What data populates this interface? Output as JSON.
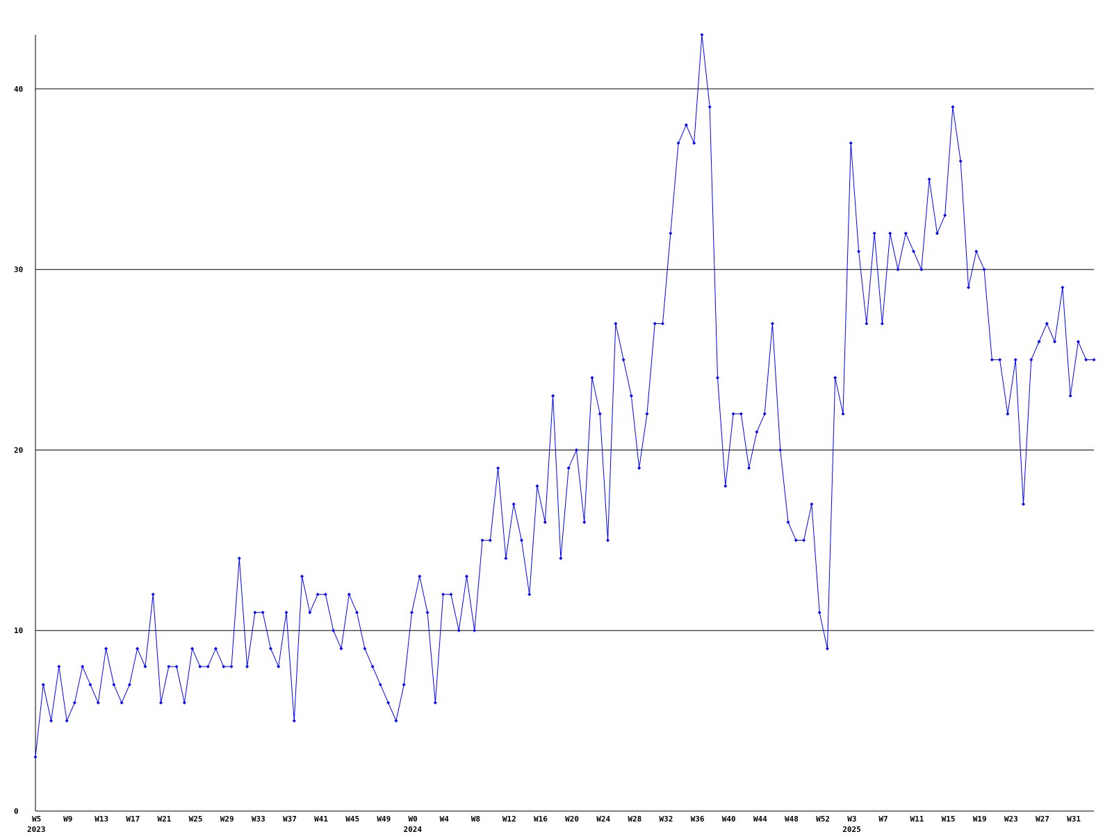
{
  "chart_data": {
    "type": "line",
    "categories": [
      "W5",
      null,
      null,
      null,
      "W9",
      null,
      null,
      null,
      "W13",
      null,
      null,
      null,
      "W17",
      null,
      null,
      null,
      "W21",
      null,
      null,
      null,
      "W25",
      null,
      null,
      null,
      "W29",
      null,
      null,
      null,
      "W33",
      null,
      null,
      null,
      "W37",
      null,
      null,
      null,
      "W41",
      null,
      null,
      null,
      "W45",
      null,
      null,
      null,
      "W49",
      null,
      null,
      null,
      "W0",
      null,
      null,
      null,
      "W4",
      null,
      null,
      null,
      "W8",
      null,
      null,
      null,
      "W12",
      null,
      null,
      null,
      "W16",
      null,
      null,
      null,
      "W20",
      null,
      null,
      null,
      "W24",
      null,
      null,
      null,
      "W28",
      null,
      null,
      null,
      "W32",
      null,
      null,
      null,
      "W36",
      null,
      null,
      null,
      "W40",
      null,
      null,
      null,
      "W44",
      null,
      null,
      null,
      "W48",
      null,
      null,
      null,
      "W52",
      null,
      null,
      null,
      "W3",
      null,
      null,
      null,
      "W7",
      null,
      null,
      null,
      "W11",
      null,
      null,
      null,
      "W15",
      null,
      null,
      null,
      "W19",
      null,
      null,
      null,
      "W23",
      null,
      null,
      null,
      "W27",
      null,
      null,
      null,
      "W31",
      null,
      null,
      null
    ],
    "years": [
      "2023",
      null,
      null,
      null,
      null,
      null,
      null,
      null,
      null,
      null,
      null,
      null,
      null,
      null,
      null,
      null,
      null,
      null,
      null,
      null,
      null,
      null,
      null,
      null,
      null,
      null,
      null,
      null,
      null,
      null,
      null,
      null,
      null,
      null,
      null,
      null,
      null,
      null,
      null,
      null,
      null,
      null,
      null,
      null,
      null,
      null,
      null,
      null,
      "2024",
      null,
      null,
      null,
      null,
      null,
      null,
      null,
      null,
      null,
      null,
      null,
      null,
      null,
      null,
      null,
      null,
      null,
      null,
      null,
      null,
      null,
      null,
      null,
      null,
      null,
      null,
      null,
      null,
      null,
      null,
      null,
      null,
      null,
      null,
      null,
      null,
      null,
      null,
      null,
      null,
      null,
      null,
      null,
      null,
      null,
      null,
      null,
      null,
      null,
      null,
      null,
      null,
      null,
      null,
      null,
      "2025",
      null,
      null,
      null,
      null,
      null,
      null,
      null,
      null,
      null,
      null,
      null,
      null,
      null,
      null,
      null,
      null,
      null,
      null,
      null,
      null,
      null,
      null,
      null,
      null,
      null,
      null,
      null,
      null,
      null,
      null,
      null
    ],
    "series": [
      {
        "color": "#0000ff",
        "values": [
          3,
          7,
          5,
          8,
          5,
          6,
          8,
          7,
          6,
          9,
          7,
          6,
          7,
          9,
          8,
          12,
          6,
          8,
          8,
          6,
          9,
          8,
          8,
          9,
          8,
          8,
          14,
          8,
          11,
          11,
          9,
          8,
          11,
          5,
          13,
          11,
          12,
          12,
          10,
          9,
          12,
          11,
          9,
          8,
          7,
          6,
          5,
          7,
          11,
          13,
          11,
          6,
          12,
          12,
          10,
          13,
          10,
          15,
          15,
          19,
          14,
          17,
          15,
          12,
          18,
          16,
          23,
          14,
          19,
          20,
          16,
          24,
          22,
          15,
          27,
          25,
          23,
          19,
          22,
          27,
          27,
          32,
          37,
          38,
          37,
          43,
          39,
          24,
          18,
          22,
          22,
          19,
          21,
          22,
          27,
          20,
          16,
          15,
          15,
          17,
          11,
          9,
          24,
          22,
          37,
          31,
          27,
          32,
          27,
          32,
          30,
          32,
          31,
          30,
          35,
          32,
          33,
          39,
          36,
          29,
          31,
          30,
          25,
          25,
          22,
          25,
          17,
          25,
          26,
          27,
          26,
          29,
          23,
          26,
          25,
          25
        ]
      }
    ],
    "ylim": [
      0,
      43
    ],
    "yticks": [
      0,
      10,
      20,
      30,
      40
    ],
    "grid": true
  }
}
